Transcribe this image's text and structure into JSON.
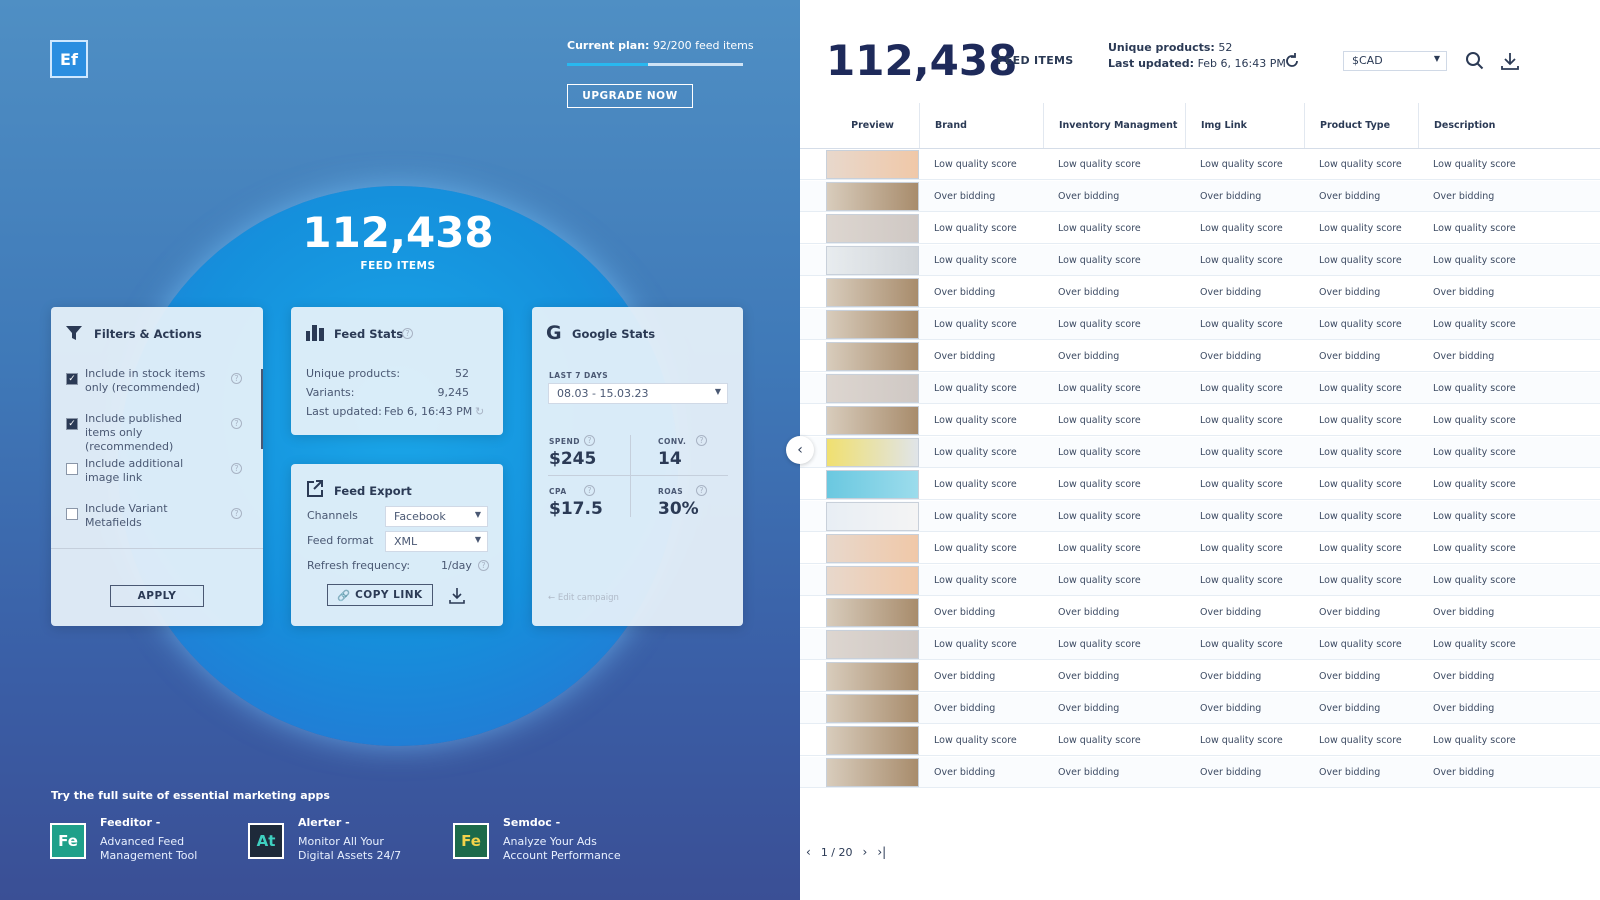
{
  "app": {
    "logo": "Ef",
    "plan_label": "Current plan:",
    "plan_value": "92/200 feed items",
    "upgrade": "UPGRADE NOW"
  },
  "hero": {
    "count": "112,438",
    "label": "FEED ITEMS"
  },
  "filters": {
    "title": "Filters & Actions",
    "options": [
      {
        "label": "Include in stock items only (recommended)",
        "checked": true
      },
      {
        "label": "Include published items only (recommended)",
        "checked": true
      },
      {
        "label": "Include additional image link",
        "checked": false
      },
      {
        "label": "Include Variant Metafields",
        "checked": false
      }
    ],
    "apply": "APPLY"
  },
  "feed_stats": {
    "title": "Feed Stats",
    "rows": [
      [
        "Unique products:",
        "52"
      ],
      [
        "Variants:",
        "9,245"
      ],
      [
        "Last updated:",
        "Feb 6, 16:43 PM"
      ]
    ]
  },
  "feed_export": {
    "title": "Feed Export",
    "channels_label": "Channels",
    "channels": "Facebook",
    "format_label": "Feed format",
    "format": "XML",
    "refresh_label": "Refresh frequency:",
    "refresh": "1/day",
    "copy": "COPY LINK"
  },
  "google_stats": {
    "title": "Google Stats",
    "period_label": "LAST 7 DAYS",
    "period": "08.03 - 15.03.23",
    "metrics": [
      {
        "label": "SPEND",
        "value": "$245"
      },
      {
        "label": "CONV.",
        "value": "14"
      },
      {
        "label": "CPA",
        "value": "$17.5"
      },
      {
        "label": "ROAS",
        "value": "30%"
      }
    ],
    "edit": "Edit campaign"
  },
  "suite": {
    "title": "Try the full suite of essential marketing apps",
    "apps": [
      {
        "icon": "Fe",
        "name": "Feeditor -",
        "desc": [
          "Advanced Feed",
          "Management Tool"
        ]
      },
      {
        "icon": "At",
        "name": "Alerter -",
        "desc": [
          "Monitor All Your",
          "Digital Assets 24/7"
        ]
      },
      {
        "icon": "Fe",
        "name": "Semdoc -",
        "desc": [
          "Analyze Your Ads",
          "Account Performance"
        ]
      }
    ]
  },
  "header": {
    "count": "112,438",
    "label": "FEED ITEMS",
    "unique_label": "Unique products:",
    "unique": "52",
    "updated_label": "Last updated:",
    "updated": "Feb 6, 16:43 PM",
    "currency": "$CAD"
  },
  "table": {
    "columns": [
      "Preview",
      "Brand",
      "Inventory Managment",
      "Img Link",
      "Product Type",
      "Description"
    ],
    "rows": [
      [
        "Low quality score",
        "Low quality score",
        "Low quality score",
        "Low quality score",
        "Low quality score"
      ],
      [
        "Over bidding",
        "Over bidding",
        "Over bidding",
        "Over bidding",
        "Over bidding"
      ],
      [
        "Low quality score",
        "Low quality score",
        "Low quality score",
        "Low quality score",
        "Low quality score"
      ],
      [
        "Low quality score",
        "Low quality score",
        "Low quality score",
        "Low quality score",
        "Low quality score"
      ],
      [
        "Over bidding",
        "Over bidding",
        "Over bidding",
        "Over bidding",
        "Over bidding"
      ],
      [
        "Low quality score",
        "Low quality score",
        "Low quality score",
        "Low quality score",
        "Low quality score"
      ],
      [
        "Over bidding",
        "Over bidding",
        "Over bidding",
        "Over bidding",
        "Over bidding"
      ],
      [
        "Low quality score",
        "Low quality score",
        "Low quality score",
        "Low quality score",
        "Low quality score"
      ],
      [
        "Low quality score",
        "Low quality score",
        "Low quality score",
        "Low quality score",
        "Low quality score"
      ],
      [
        "Low quality score",
        "Low quality score",
        "Low quality score",
        "Low quality score",
        "Low quality score"
      ],
      [
        "Low quality score",
        "Low quality score",
        "Low quality score",
        "Low quality score",
        "Low quality score"
      ],
      [
        "Low quality score",
        "Low quality score",
        "Low quality score",
        "Low quality score",
        "Low quality score"
      ],
      [
        "Low quality score",
        "Low quality score",
        "Low quality score",
        "Low quality score",
        "Low quality score"
      ],
      [
        "Low quality score",
        "Low quality score",
        "Low quality score",
        "Low quality score",
        "Low quality score"
      ],
      [
        "Over bidding",
        "Over bidding",
        "Over bidding",
        "Over bidding",
        "Over bidding"
      ],
      [
        "Low quality score",
        "Low quality score",
        "Low quality score",
        "Low quality score",
        "Low quality score"
      ],
      [
        "Over bidding",
        "Over bidding",
        "Over bidding",
        "Over bidding",
        "Over bidding"
      ],
      [
        "Over bidding",
        "Over bidding",
        "Over bidding",
        "Over bidding",
        "Over bidding"
      ],
      [
        "Low quality score",
        "Low quality score",
        "Low quality score",
        "Low quality score",
        "Low quality score"
      ],
      [
        "Over bidding",
        "Over bidding",
        "Over bidding",
        "Over bidding",
        "Over bidding"
      ]
    ]
  },
  "pagination": {
    "page": "1 / 20"
  }
}
